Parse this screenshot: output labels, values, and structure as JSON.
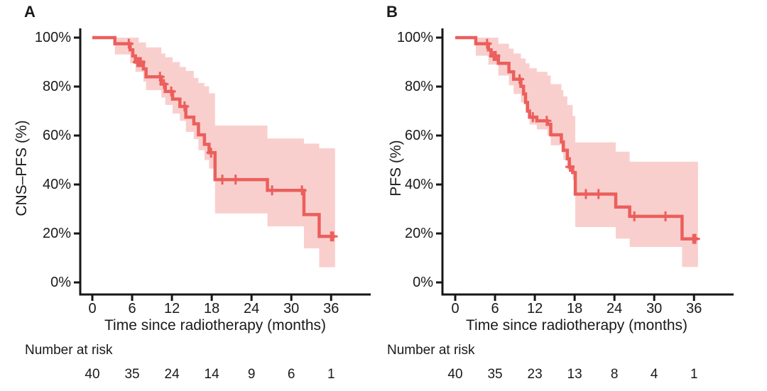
{
  "chart_data": [
    {
      "type": "line",
      "subtype": "kaplan-meier-step",
      "panel_label": "A",
      "ylabel": "CNS–PFS (%)",
      "xlabel": "Time since radiotherapy (months)",
      "y_ticks": [
        "100%",
        "80%",
        "60%",
        "40%",
        "20%",
        "0%"
      ],
      "y_tick_values": [
        100,
        80,
        60,
        40,
        20,
        0
      ],
      "x_ticks": [
        0,
        6,
        12,
        18,
        24,
        30,
        36
      ],
      "xlim": [
        0,
        39
      ],
      "ylim": [
        0,
        100
      ],
      "grid": false,
      "legend": false,
      "line_color": "#eb5f5c",
      "band_color": "#f9cfcd",
      "axis_color": "#161616",
      "t_end": 36.6,
      "survival_steps": [
        [
          0,
          100
        ],
        [
          3.4,
          97.5
        ],
        [
          5.7,
          95
        ],
        [
          6.1,
          92.5
        ],
        [
          6.5,
          90
        ],
        [
          7.7,
          87.2
        ],
        [
          8.1,
          84
        ],
        [
          10.4,
          81
        ],
        [
          11.0,
          78
        ],
        [
          12.1,
          74.9
        ],
        [
          13.2,
          71.9
        ],
        [
          14.1,
          67.5
        ],
        [
          15.3,
          64.8
        ],
        [
          16.0,
          60.3
        ],
        [
          16.9,
          56.4
        ],
        [
          17.6,
          53
        ],
        [
          18.5,
          42
        ],
        [
          26.4,
          37.6
        ],
        [
          31.9,
          27.7
        ],
        [
          34.2,
          18.8
        ]
      ],
      "censor_marks": [
        [
          5.5,
          97.5
        ],
        [
          6.8,
          90
        ],
        [
          7.05,
          90
        ],
        [
          7.3,
          90
        ],
        [
          10.2,
          84
        ],
        [
          10.8,
          81
        ],
        [
          11.9,
          78
        ],
        [
          13.9,
          71.9
        ],
        [
          17.9,
          53
        ],
        [
          19.6,
          42
        ],
        [
          21.6,
          42
        ],
        [
          27.1,
          37.6
        ],
        [
          31.6,
          37.6
        ],
        [
          36.0,
          18.8
        ],
        [
          36.3,
          18.8
        ]
      ],
      "ci_upper": [
        [
          3.4,
          100
        ],
        [
          7.0,
          98
        ],
        [
          8.1,
          96
        ],
        [
          10.4,
          93.5
        ],
        [
          11.0,
          92
        ],
        [
          12.1,
          90
        ],
        [
          13.2,
          88
        ],
        [
          14.1,
          86.4
        ],
        [
          15.3,
          83.5
        ],
        [
          16.0,
          81.5
        ],
        [
          16.9,
          80.1
        ],
        [
          17.6,
          77.3
        ],
        [
          18.5,
          64.1
        ],
        [
          26.4,
          58.8
        ],
        [
          31.9,
          56.7
        ],
        [
          34.2,
          54.8
        ]
      ],
      "ci_lower": [
        [
          3.4,
          93.1
        ],
        [
          5.7,
          89.5
        ],
        [
          6.5,
          86
        ],
        [
          7.7,
          82
        ],
        [
          8.1,
          78.5
        ],
        [
          10.4,
          75.5
        ],
        [
          11.0,
          72.5
        ],
        [
          12.1,
          69
        ],
        [
          13.2,
          66
        ],
        [
          14.1,
          61.5
        ],
        [
          15.3,
          58.5
        ],
        [
          16.0,
          54
        ],
        [
          16.9,
          50
        ],
        [
          17.6,
          46.5
        ],
        [
          18.5,
          28.2
        ],
        [
          26.4,
          22.9
        ],
        [
          31.9,
          13.9
        ],
        [
          34.2,
          6.2
        ]
      ],
      "risk_label": "Number at risk",
      "number_at_risk": [
        40,
        35,
        24,
        14,
        9,
        6,
        1
      ]
    },
    {
      "type": "line",
      "subtype": "kaplan-meier-step",
      "panel_label": "B",
      "ylabel": "PFS (%)",
      "xlabel": "Time since radiotherapy (months)",
      "y_ticks": [
        "100%",
        "80%",
        "60%",
        "40%",
        "20%",
        "0%"
      ],
      "y_tick_values": [
        100,
        80,
        60,
        40,
        20,
        0
      ],
      "x_ticks": [
        0,
        6,
        12,
        18,
        24,
        30,
        36
      ],
      "xlim": [
        0,
        39
      ],
      "ylim": [
        0,
        100
      ],
      "grid": false,
      "legend": false,
      "line_color": "#eb5f5c",
      "band_color": "#f9cfcd",
      "axis_color": "#161616",
      "t_end": 36.6,
      "survival_steps": [
        [
          0,
          100
        ],
        [
          3.1,
          97.5
        ],
        [
          5.0,
          95
        ],
        [
          5.4,
          92.5
        ],
        [
          6.5,
          89.5
        ],
        [
          8.1,
          86
        ],
        [
          8.8,
          83
        ],
        [
          9.9,
          80.1
        ],
        [
          10.3,
          77
        ],
        [
          10.6,
          73.5
        ],
        [
          10.9,
          70
        ],
        [
          11.2,
          67.5
        ],
        [
          12.3,
          66
        ],
        [
          13.9,
          64.6
        ],
        [
          14.4,
          60.3
        ],
        [
          16.0,
          57.4
        ],
        [
          16.3,
          54
        ],
        [
          16.9,
          50.5
        ],
        [
          17.2,
          47.2
        ],
        [
          17.7,
          44.9
        ],
        [
          18.1,
          36.1
        ],
        [
          24.2,
          30.8
        ],
        [
          26.3,
          27
        ],
        [
          34.2,
          17.8
        ]
      ],
      "censor_marks": [
        [
          4.8,
          97.5
        ],
        [
          5.8,
          92.5
        ],
        [
          6.1,
          92.5
        ],
        [
          9.7,
          83
        ],
        [
          11.7,
          67.5
        ],
        [
          13.8,
          66
        ],
        [
          17.3,
          47.2
        ],
        [
          19.7,
          36.1
        ],
        [
          21.6,
          36.1
        ],
        [
          27.0,
          27
        ],
        [
          31.7,
          27
        ],
        [
          35.9,
          17.8
        ],
        [
          36.2,
          17.8
        ]
      ],
      "ci_upper": [
        [
          3.1,
          100
        ],
        [
          6.5,
          97.5
        ],
        [
          8.1,
          95.5
        ],
        [
          8.8,
          93.5
        ],
        [
          9.9,
          91.5
        ],
        [
          10.6,
          89.5
        ],
        [
          11.2,
          87.5
        ],
        [
          12.3,
          86
        ],
        [
          13.9,
          84.5
        ],
        [
          14.4,
          81
        ],
        [
          16.0,
          78.5
        ],
        [
          16.3,
          76
        ],
        [
          16.9,
          72.5
        ],
        [
          17.7,
          68
        ],
        [
          18.1,
          57.2
        ],
        [
          24.2,
          53.4
        ],
        [
          26.3,
          49.3
        ]
      ],
      "ci_lower": [
        [
          3.1,
          92.6
        ],
        [
          5.0,
          89
        ],
        [
          6.5,
          84.5
        ],
        [
          8.1,
          80.5
        ],
        [
          8.8,
          77
        ],
        [
          9.9,
          73.5
        ],
        [
          10.6,
          70
        ],
        [
          11.2,
          64.5
        ],
        [
          12.3,
          62.5
        ],
        [
          13.9,
          60
        ],
        [
          14.4,
          56
        ],
        [
          16.0,
          53
        ],
        [
          16.3,
          50
        ],
        [
          16.9,
          46
        ],
        [
          17.7,
          42
        ],
        [
          18.1,
          22.6
        ],
        [
          24.2,
          17.9
        ],
        [
          26.3,
          14.5
        ],
        [
          34.2,
          6.3
        ]
      ],
      "risk_label": "Number at risk",
      "number_at_risk": [
        40,
        35,
        23,
        13,
        8,
        4,
        1
      ]
    }
  ]
}
